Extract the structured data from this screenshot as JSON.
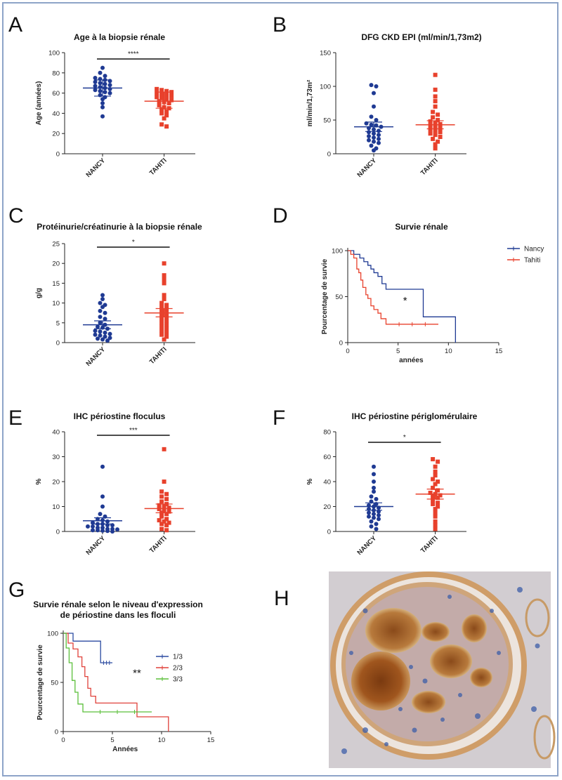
{
  "colors": {
    "nancy": "#1f3a93",
    "tahiti": "#e8412c",
    "g1": "#2b4aa0",
    "g2": "#e0413a",
    "g3": "#5bbf3a",
    "axis": "#222222"
  },
  "chart_data": [
    {
      "id": "A",
      "letter": "A",
      "type": "scatter",
      "title": "Age à la biopsie rénale",
      "ylabel": "Age (années)",
      "xlabel": "",
      "ylim": [
        0,
        100
      ],
      "yticks": [
        0,
        20,
        40,
        60,
        80,
        100
      ],
      "categories": [
        "NANCY",
        "TAHITI"
      ],
      "significance": "****",
      "series": [
        {
          "category": "NANCY",
          "color": "nancy",
          "marker": "circle",
          "values": [
            85,
            80,
            77,
            75,
            74,
            73,
            72,
            71,
            70,
            69,
            68,
            67,
            66,
            65,
            64,
            63,
            62,
            61,
            60,
            58,
            56,
            54,
            50,
            46,
            37
          ],
          "mean": 65,
          "err": [
            57,
            73
          ]
        },
        {
          "category": "TAHITI",
          "color": "tahiti",
          "marker": "square",
          "values": [
            64,
            63,
            62,
            61,
            60,
            59,
            58,
            57,
            56,
            55,
            54,
            53,
            52,
            51,
            50,
            48,
            46,
            45,
            44,
            42,
            40,
            38,
            35,
            29,
            27
          ],
          "mean": 52,
          "err": [
            45,
            61
          ]
        }
      ]
    },
    {
      "id": "B",
      "letter": "B",
      "type": "scatter",
      "title": "DFG CKD EPI (ml/min/1,73m2)",
      "ylabel": "ml/min/1,73m²",
      "xlabel": "",
      "ylim": [
        0,
        150
      ],
      "yticks": [
        0,
        50,
        100,
        150
      ],
      "categories": [
        "NANCY",
        "TAHITI"
      ],
      "significance": "",
      "series": [
        {
          "category": "NANCY",
          "color": "nancy",
          "marker": "circle",
          "values": [
            102,
            100,
            90,
            70,
            55,
            50,
            45,
            43,
            42,
            40,
            38,
            36,
            34,
            32,
            30,
            28,
            26,
            24,
            22,
            20,
            18,
            16,
            12,
            8,
            5
          ],
          "mean": 40,
          "err": [
            33,
            47
          ]
        },
        {
          "category": "TAHITI",
          "color": "tahiti",
          "marker": "square",
          "values": [
            117,
            95,
            85,
            78,
            70,
            62,
            58,
            54,
            50,
            48,
            46,
            44,
            42,
            40,
            38,
            36,
            34,
            32,
            30,
            28,
            25,
            22,
            18,
            14,
            8
          ],
          "mean": 43,
          "err": [
            37,
            49
          ]
        }
      ]
    },
    {
      "id": "C",
      "letter": "C",
      "type": "scatter",
      "title": "Protéinurie/créatinurie à la biopsie rénale",
      "ylabel": "g/g",
      "xlabel": "",
      "ylim": [
        0,
        25
      ],
      "yticks": [
        0,
        5,
        10,
        15,
        20,
        25
      ],
      "categories": [
        "NANCY",
        "TAHITI"
      ],
      "significance": "*",
      "series": [
        {
          "category": "NANCY",
          "color": "nancy",
          "marker": "circle",
          "values": [
            12,
            11,
            10,
            9.5,
            9,
            8,
            7.5,
            6.5,
            6,
            5,
            4.5,
            4,
            3.8,
            3.5,
            3,
            2.8,
            2.5,
            2.2,
            2,
            1.8,
            1.5,
            1.2,
            1,
            0.8,
            0.5
          ],
          "mean": 4.5,
          "err": [
            3.5,
            5.5
          ]
        },
        {
          "category": "TAHITI",
          "color": "tahiti",
          "marker": "square",
          "values": [
            20,
            17,
            16,
            15,
            12,
            11,
            10,
            9.5,
            9,
            8.5,
            8,
            7.5,
            7,
            6.5,
            6,
            5.5,
            5,
            4.5,
            4,
            3.5,
            3,
            2.5,
            2,
            1.5,
            0.8
          ],
          "mean": 7.5,
          "err": [
            6.5,
            8.6
          ]
        }
      ]
    },
    {
      "id": "D",
      "letter": "D",
      "type": "line",
      "title": "Survie rénale",
      "ylabel": "Pourcentage de survie",
      "xlabel": "années",
      "xlim": [
        0,
        15
      ],
      "xticks": [
        0,
        5,
        10,
        15
      ],
      "ylim": [
        0,
        100
      ],
      "yticks": [
        0,
        50,
        100
      ],
      "significance": "*",
      "series": [
        {
          "name": "Nancy",
          "color": "nancy",
          "steps": [
            [
              0,
              100
            ],
            [
              0.6,
              96
            ],
            [
              1.2,
              92
            ],
            [
              1.6,
              88
            ],
            [
              2.0,
              84
            ],
            [
              2.3,
              80
            ],
            [
              2.6,
              76
            ],
            [
              3.0,
              72
            ],
            [
              3.4,
              64
            ],
            [
              3.8,
              58
            ],
            [
              7.5,
              28
            ],
            [
              10.7,
              0
            ]
          ]
        },
        {
          "name": "Tahiti",
          "color": "tahiti",
          "steps": [
            [
              0,
              100
            ],
            [
              0.3,
              96
            ],
            [
              0.6,
              92
            ],
            [
              0.9,
              80
            ],
            [
              1.1,
              76
            ],
            [
              1.3,
              68
            ],
            [
              1.5,
              60
            ],
            [
              1.8,
              52
            ],
            [
              2.0,
              48
            ],
            [
              2.3,
              40
            ],
            [
              2.6,
              36
            ],
            [
              3.0,
              32
            ],
            [
              3.3,
              26
            ],
            [
              3.8,
              20
            ],
            [
              9.0,
              20
            ]
          ]
        }
      ]
    },
    {
      "id": "E",
      "letter": "E",
      "type": "scatter",
      "title": "IHC périostine floculus",
      "ylabel": "%",
      "xlabel": "",
      "ylim": [
        0,
        40
      ],
      "yticks": [
        0,
        10,
        20,
        30,
        40
      ],
      "categories": [
        "NANCY",
        "TAHITI"
      ],
      "significance": "***",
      "series": [
        {
          "category": "NANCY",
          "color": "nancy",
          "marker": "circle",
          "values": [
            26,
            14,
            10,
            7,
            6,
            5,
            4.5,
            4,
            3.5,
            3,
            3,
            2.5,
            2.5,
            2,
            2,
            1.5,
            1.5,
            1,
            1,
            0.8,
            0.5,
            0.5,
            0.3,
            0.2,
            0
          ],
          "mean": 4.3,
          "err": [
            3,
            5.5
          ]
        },
        {
          "category": "TAHITI",
          "color": "tahiti",
          "marker": "square",
          "values": [
            33,
            20,
            16,
            15,
            14,
            13,
            12,
            11,
            10.5,
            10,
            9.5,
            9,
            8.5,
            8,
            7.5,
            7,
            6,
            5,
            4.5,
            4,
            3.5,
            3,
            2.5,
            1,
            0.5
          ],
          "mean": 9.2,
          "err": [
            7.5,
            11
          ]
        }
      ]
    },
    {
      "id": "F",
      "letter": "F",
      "type": "scatter",
      "title": "IHC périostine périglomérulaire",
      "ylabel": "%",
      "xlabel": "",
      "ylim": [
        0,
        80
      ],
      "yticks": [
        0,
        20,
        40,
        60,
        80
      ],
      "categories": [
        "NANCY",
        "TAHITI"
      ],
      "significance": "*",
      "series": [
        {
          "category": "NANCY",
          "color": "nancy",
          "marker": "circle",
          "values": [
            52,
            46,
            40,
            35,
            32,
            28,
            26,
            24,
            22,
            21,
            20,
            19,
            18,
            17,
            16,
            15,
            14,
            13,
            12,
            11,
            10,
            8,
            6,
            4,
            2
          ],
          "mean": 20,
          "err": [
            17,
            23
          ]
        },
        {
          "category": "TAHITI",
          "color": "tahiti",
          "marker": "square",
          "values": [
            58,
            56,
            52,
            48,
            45,
            42,
            40,
            38,
            35,
            33,
            31,
            30,
            29,
            28,
            27,
            25,
            23,
            22,
            20,
            18,
            15,
            12,
            8,
            5,
            2
          ],
          "mean": 30,
          "err": [
            26,
            34
          ]
        }
      ]
    },
    {
      "id": "G",
      "letter": "G",
      "type": "line",
      "title": "Survie rénale selon le niveau d'expression",
      "subtitle": "de périostine dans les floculi",
      "ylabel": "Pourcentage de survie",
      "xlabel": "Années",
      "xlim": [
        0,
        15
      ],
      "xticks": [
        0,
        5,
        10,
        15
      ],
      "ylim": [
        0,
        100
      ],
      "yticks": [
        0,
        50,
        100
      ],
      "significance": "**",
      "series": [
        {
          "name": "1/3",
          "color": "g1",
          "steps": [
            [
              0,
              100
            ],
            [
              1.0,
              92
            ],
            [
              3.8,
              70
            ],
            [
              5.0,
              70
            ]
          ]
        },
        {
          "name": "2/3",
          "color": "g2",
          "steps": [
            [
              0,
              100
            ],
            [
              0.5,
              90
            ],
            [
              1.0,
              84
            ],
            [
              1.5,
              76
            ],
            [
              1.9,
              66
            ],
            [
              2.2,
              56
            ],
            [
              2.5,
              44
            ],
            [
              2.8,
              36
            ],
            [
              3.3,
              29
            ],
            [
              7.5,
              15
            ],
            [
              10.7,
              0
            ]
          ]
        },
        {
          "name": "3/3",
          "color": "g3",
          "steps": [
            [
              0,
              100
            ],
            [
              0.3,
              85
            ],
            [
              0.6,
              70
            ],
            [
              0.9,
              52
            ],
            [
              1.2,
              40
            ],
            [
              1.5,
              28
            ],
            [
              2.0,
              20
            ],
            [
              9.0,
              20
            ]
          ]
        }
      ]
    }
  ],
  "panel_h": {
    "letter": "H"
  }
}
